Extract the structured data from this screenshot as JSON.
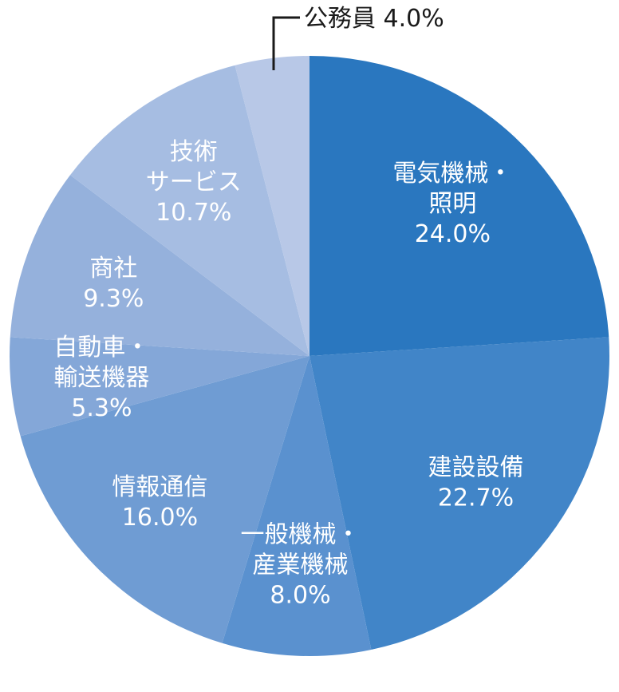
{
  "chart_data": {
    "type": "pie",
    "start_angle_deg": 0,
    "direction": "clockwise",
    "slices": [
      {
        "lines": [
          "電気機械・",
          "照明"
        ],
        "percent_label": "24.0%",
        "value": 24.0,
        "color": "#2a77bf"
      },
      {
        "lines": [
          "建設設備"
        ],
        "percent_label": "22.7%",
        "value": 22.7,
        "color": "#4185c8"
      },
      {
        "lines": [
          "一般機械・",
          "産業機械"
        ],
        "percent_label": "8.0%",
        "value": 8.0,
        "color": "#5a91cf"
      },
      {
        "lines": [
          "情報通信"
        ],
        "percent_label": "16.0%",
        "value": 16.0,
        "color": "#6f9cd3"
      },
      {
        "lines": [
          "自動車・",
          "輸送機器"
        ],
        "percent_label": "5.3%",
        "value": 5.3,
        "color": "#84a7d8"
      },
      {
        "lines": [
          "商社"
        ],
        "percent_label": "9.3%",
        "value": 9.3,
        "color": "#95b1dc"
      },
      {
        "lines": [
          "技術",
          "サービス"
        ],
        "percent_label": "10.7%",
        "value": 10.7,
        "color": "#a6bde2"
      },
      {
        "lines": [],
        "percent_label": "",
        "value": 4.0,
        "color": "#b8c8e7",
        "callout": "公務員 4.0%"
      }
    ]
  }
}
